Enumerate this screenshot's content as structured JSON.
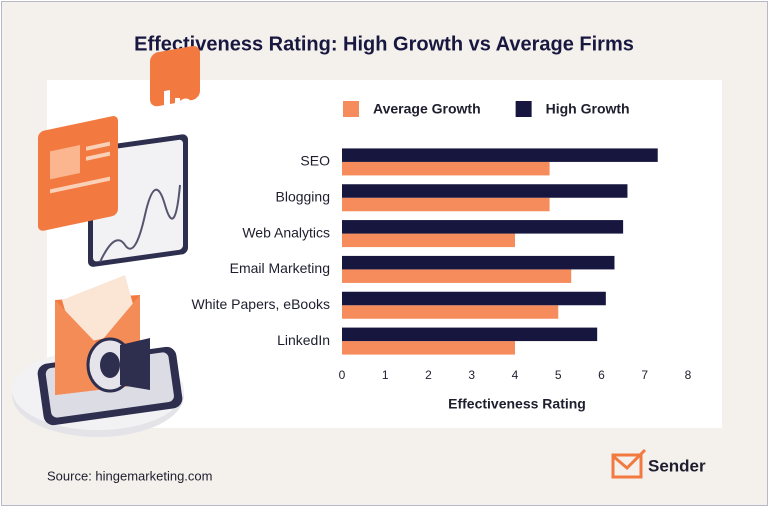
{
  "chart_data": {
    "type": "bar",
    "orientation": "horizontal",
    "title": "Effectiveness Rating: High Growth vs Average Firms",
    "categories": [
      "SEO",
      "Blogging",
      "Web Analytics",
      "Email Marketing",
      "White Papers, eBooks",
      "LinkedIn"
    ],
    "series": [
      {
        "name": "Average Growth",
        "color": "#f68b5c",
        "values": [
          4.8,
          4.8,
          4.0,
          5.3,
          5.0,
          4.0
        ]
      },
      {
        "name": "High Growth",
        "color": "#16163f",
        "values": [
          7.3,
          6.6,
          6.5,
          6.3,
          6.1,
          5.9
        ]
      }
    ],
    "xlim": [
      0,
      8
    ],
    "xticks": [
      0,
      1,
      2,
      3,
      4,
      5,
      6,
      7,
      8
    ],
    "x_label": "Effectiveness Rating",
    "grid": false,
    "legend": "top",
    "source": "Source: hingemarketing.com",
    "brand": "Sender"
  }
}
